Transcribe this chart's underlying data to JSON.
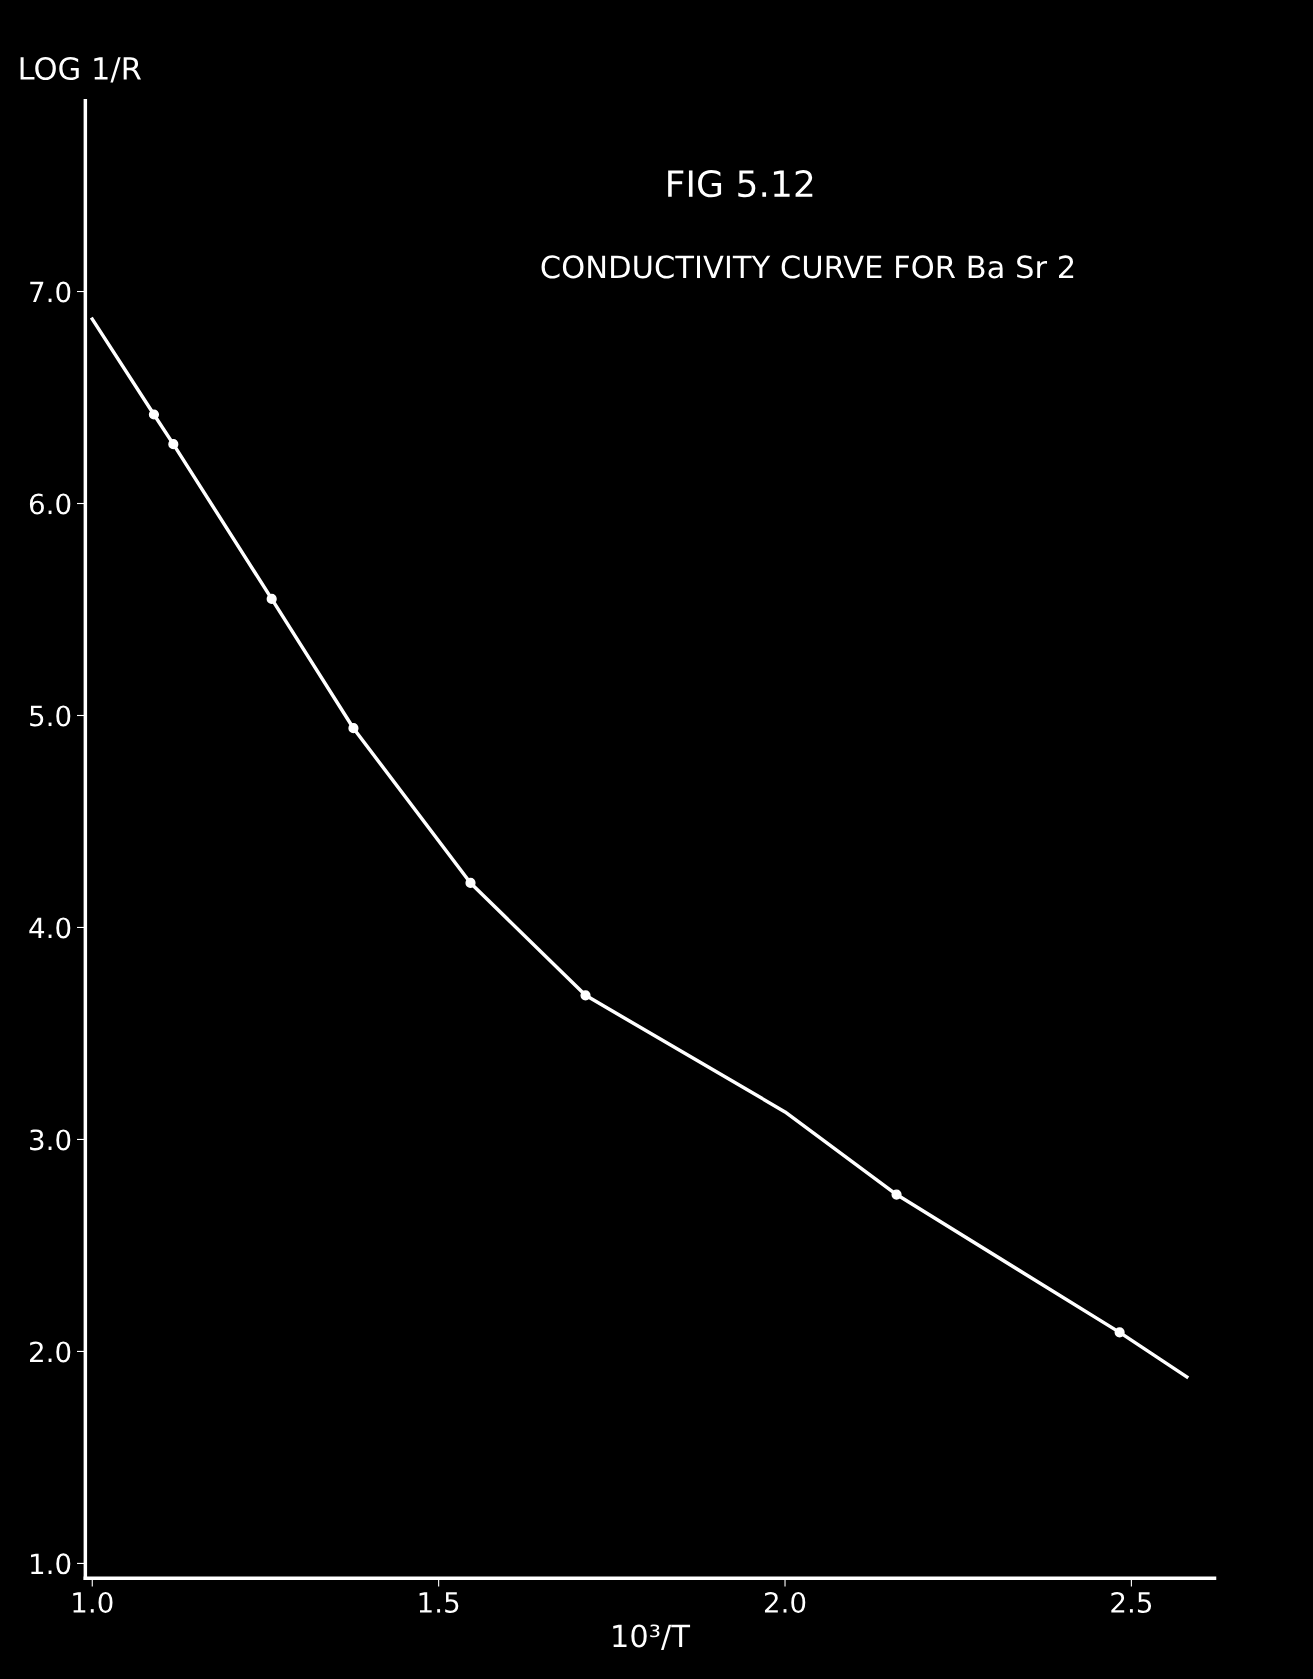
{
  "chart_data": {
    "type": "line",
    "title": "FIG 5.12",
    "subtitle": "CONDUCTIVITY CURVE FOR Ba Sr 2",
    "xlabel": "10³/T",
    "ylabel": "LOG 1/R",
    "xlim": [
      0.99,
      2.62
    ],
    "ylim": [
      0.93,
      7.9
    ],
    "xticks": [
      {
        "value": 1.0,
        "label": "1.0"
      },
      1.5,
      {
        "value": 2.0,
        "label": "2.0"
      },
      2.5
    ],
    "yticks": [
      {
        "value": 1.0,
        "label": "1.0"
      },
      {
        "value": 2.0,
        "label": "2.0"
      },
      {
        "value": 3.0,
        "label": "3.0"
      },
      {
        "value": 4.0,
        "label": "4.0"
      },
      {
        "value": 5.0,
        "label": "5.0"
      },
      {
        "value": 6.0,
        "label": "6.0"
      },
      {
        "value": 7.0,
        "label": "7.0"
      }
    ],
    "grid": false,
    "legend": false,
    "series": [
      {
        "color": "#ffffff",
        "marker": "none",
        "line_style": "solid",
        "x": [
          1.0,
          1.089,
          1.117,
          1.259,
          1.377,
          1.546,
          1.712,
          2.0,
          2.161,
          2.483,
          2.58
        ],
        "values": [
          6.87,
          6.42,
          6.28,
          5.55,
          4.94,
          4.21,
          3.68,
          3.13,
          2.74,
          2.09,
          1.88
        ]
      },
      {
        "type": "scatter",
        "color": "#ffffff",
        "marker": "circle",
        "x": [
          1.089,
          1.117,
          1.259,
          1.377,
          1.546,
          1.712,
          2.161,
          2.483
        ],
        "values": [
          6.42,
          6.28,
          5.55,
          4.94,
          4.21,
          3.68,
          2.74,
          2.09
        ]
      }
    ]
  }
}
